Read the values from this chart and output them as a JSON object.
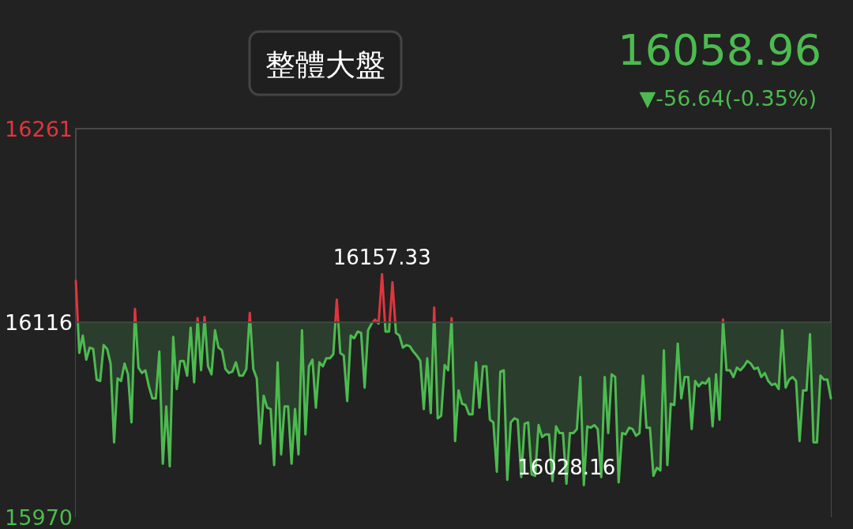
{
  "chart_data": {
    "type": "area",
    "title": "整體大盤",
    "subtitle": "16058.96",
    "annotations": [
      "▼-56.64(-0.35%)",
      {
        "text": "16157.33",
        "y": 16152
      },
      {
        "text": "16028.16",
        "y": 15995
      }
    ],
    "categories": [
      null,
      null,
      null,
      null,
      null,
      null,
      null,
      null,
      null,
      null,
      null,
      null,
      null,
      null,
      null,
      null,
      null,
      null,
      null,
      null,
      null,
      null,
      null,
      null,
      null,
      null,
      null,
      null,
      null,
      null,
      null,
      null,
      null,
      null,
      null,
      null,
      null,
      null,
      null,
      null,
      null,
      null,
      null,
      null,
      null,
      null,
      null,
      null,
      null,
      null,
      null,
      null,
      null,
      null,
      null,
      null,
      null,
      null,
      null,
      null,
      null,
      null,
      null,
      null,
      null,
      null,
      null,
      null,
      null,
      null,
      null,
      null,
      null,
      null,
      null,
      null,
      null,
      null,
      null,
      null,
      null,
      null,
      null,
      null,
      null,
      null,
      null,
      null,
      null,
      null,
      null,
      null,
      null,
      null,
      null,
      null,
      null,
      null,
      null,
      null,
      null,
      null,
      null,
      null,
      null,
      null,
      null,
      null,
      null,
      null,
      null,
      null,
      null,
      null,
      null,
      null,
      null,
      null,
      null,
      null,
      null,
      null,
      null,
      null,
      null,
      null,
      null,
      null,
      null,
      null,
      null,
      null,
      null,
      null,
      null,
      null,
      null,
      null,
      null,
      null,
      null,
      null,
      null,
      null,
      null,
      null,
      null,
      null,
      null,
      null,
      null,
      null,
      null,
      null,
      null,
      null,
      null,
      null,
      null,
      null,
      null,
      null,
      null,
      null,
      null,
      null,
      null,
      null,
      null,
      null,
      null,
      null,
      null,
      null,
      null,
      null,
      null,
      null,
      null,
      null,
      null,
      null,
      null,
      null,
      null,
      null,
      null,
      null,
      null,
      null,
      null,
      null,
      null,
      null,
      null,
      null,
      null,
      null,
      null,
      null,
      null,
      null,
      null,
      null,
      null,
      null,
      null,
      null,
      null,
      null,
      null,
      null,
      null,
      null,
      null,
      null,
      null,
      null
    ],
    "ylim": [
      15970,
      16261
    ],
    "yticks": [
      15970,
      16116,
      16261
    ],
    "tick_labels": "y",
    "ref_lines": [
      {
        "axis": "y",
        "value": 16116,
        "color": "#3e4a3e"
      }
    ],
    "bands": [
      {
        "axis": "y",
        "from": 15970,
        "to": 16116,
        "color": "#2b3d2c"
      }
    ],
    "series": [
      {
        "color": "#4cbb4f",
        "values": [
          16147,
          16093,
          16106,
          16088,
          16097,
          16096,
          16073,
          16072,
          16099,
          16096,
          16085,
          16026,
          16074,
          16072,
          16085,
          16077,
          16041,
          16126,
          16082,
          16078,
          16080,
          16068,
          16059,
          16059,
          16094,
          16010,
          16053,
          16008,
          16105,
          16066,
          16087,
          16087,
          16076,
          16112,
          16071,
          16119,
          16080,
          16120,
          16083,
          16077,
          16110,
          16097,
          16095,
          16081,
          16078,
          16079,
          16086,
          16076,
          16076,
          16081,
          16123,
          16081,
          16074,
          16025,
          16061,
          16052,
          16051,
          16009,
          16086,
          16017,
          16053,
          16053,
          16010,
          16051,
          16017,
          16110,
          16032,
          16083,
          16088,
          16052,
          16086,
          16083,
          16089,
          16089,
          16092,
          16133,
          16093,
          16091,
          16057,
          16106,
          16104,
          16109,
          16108,
          16067,
          16110,
          16115,
          16118,
          16115,
          16152,
          16109,
          16109,
          16146,
          16108,
          16106,
          16097,
          16099,
          16098,
          16094,
          16091,
          16087,
          16051,
          16089,
          16048,
          16127,
          16044,
          16046,
          16084,
          16080,
          16119,
          16027,
          16065,
          16055,
          16054,
          16047,
          16047,
          16086,
          16052,
          16083,
          16083,
          16043,
          16041,
          16004,
          16079,
          16080,
          15998,
          16041,
          16044,
          16043,
          16000,
          16040,
          16041,
          16002,
          16001,
          16039,
          16030,
          16032,
          16032,
          15997,
          16038,
          16033,
          16033,
          15995,
          16033,
          16033,
          16036,
          16075,
          15994,
          16038,
          16037,
          16039,
          16036,
          16000,
          16075,
          16033,
          16077,
          16075,
          15996,
          16033,
          16032,
          16037,
          16036,
          16031,
          16033,
          16076,
          16037,
          16037,
          16001,
          16007,
          16005,
          16095,
          16009,
          16055,
          16054,
          16100,
          16059,
          16075,
          16075,
          16036,
          16072,
          16068,
          16071,
          16070,
          16074,
          16038,
          16077,
          16043,
          16118,
          16080,
          16080,
          16075,
          16082,
          16080,
          16083,
          16087,
          16085,
          16081,
          16082,
          16075,
          16078,
          16072,
          16069,
          16070,
          16066,
          16110,
          16067,
          16073,
          16075,
          16072,
          16027,
          16065,
          16065,
          16107,
          16026,
          16026,
          16076,
          16073,
          16073,
          16059
        ]
      }
    ]
  }
}
